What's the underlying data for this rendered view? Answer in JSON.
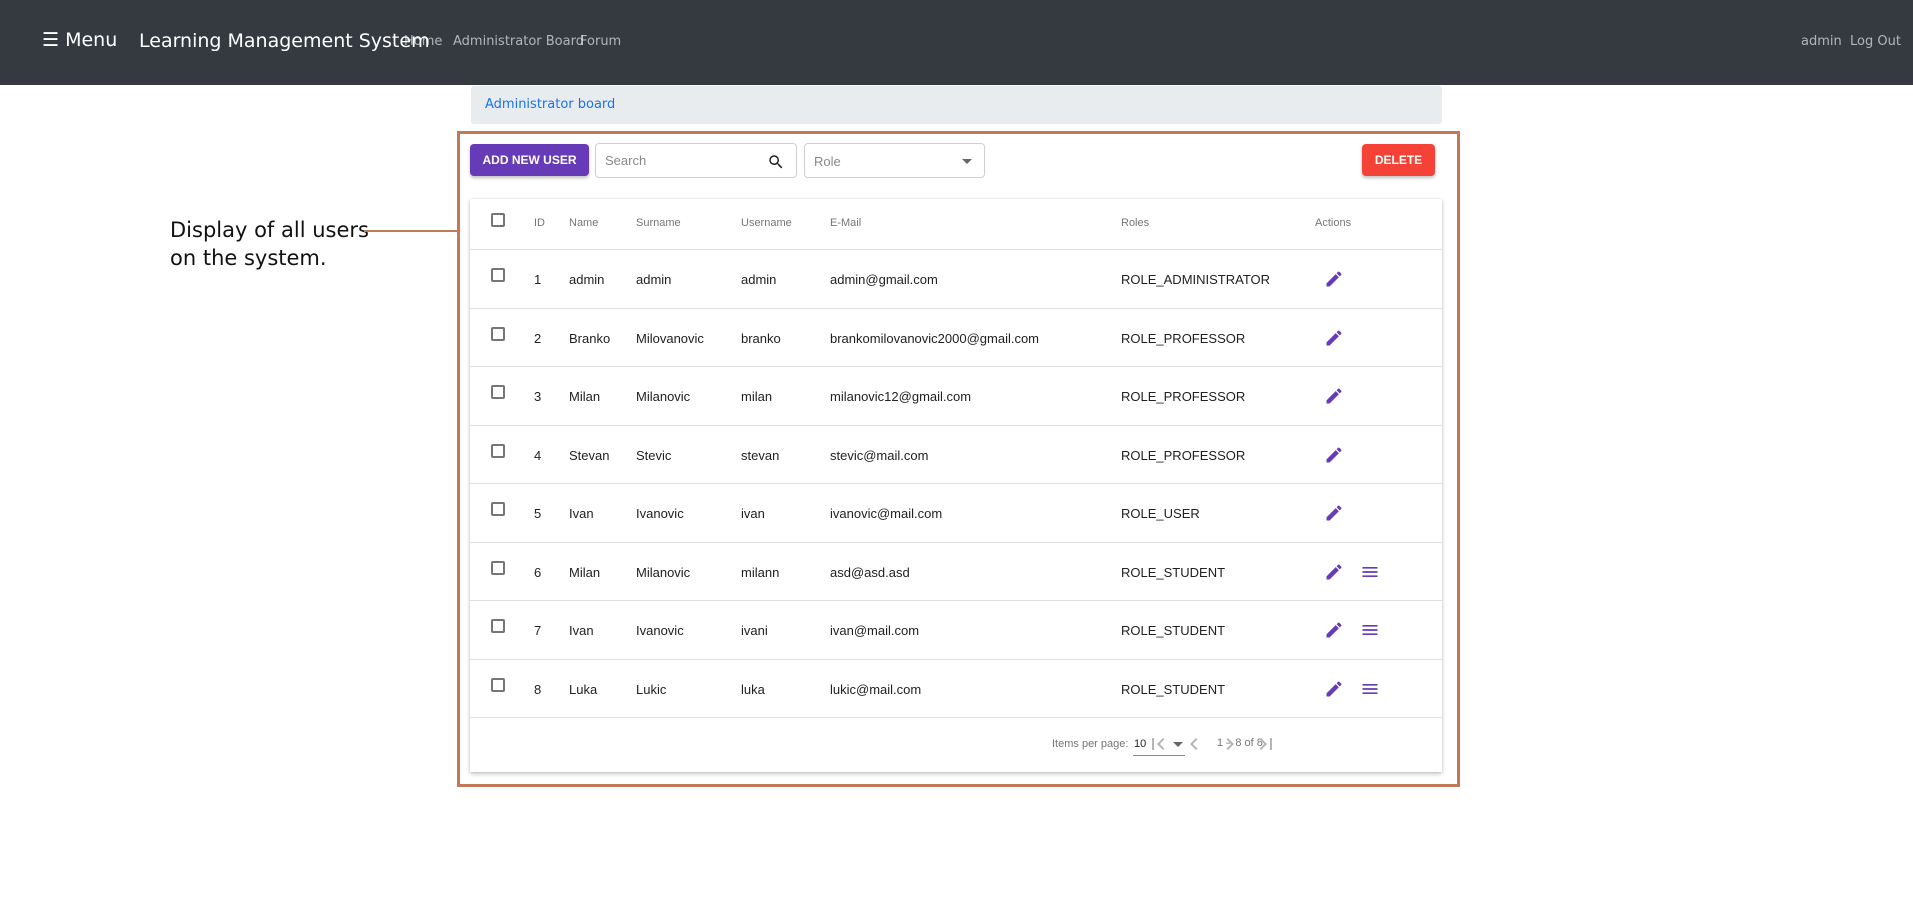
{
  "navbar": {
    "menu_label": "☰ Menu",
    "brand": "Learning Management System",
    "links": [
      "Home",
      "Administrator Board",
      "Forum"
    ],
    "user": "admin",
    "logout": "Log Out"
  },
  "breadcrumb": {
    "label": "Administrator board"
  },
  "annotation": {
    "line1": "Display of all users",
    "line2": "on the system."
  },
  "toolbar": {
    "add_label": "ADD NEW USER",
    "search_placeholder": "Search",
    "role_placeholder": "Role",
    "delete_label": "DELETE"
  },
  "table": {
    "columns": [
      "ID",
      "Name",
      "Surname",
      "Username",
      "E-Mail",
      "Roles",
      "Actions"
    ],
    "rows": [
      {
        "id": "1",
        "name": "admin",
        "surname": "admin",
        "username": "admin",
        "email": "admin@gmail.com",
        "role": "ROLE_ADMINISTRATOR",
        "has_menu": false
      },
      {
        "id": "2",
        "name": "Branko",
        "surname": "Milovanovic",
        "username": "branko",
        "email": "brankomilovanovic2000@gmail.com",
        "role": "ROLE_PROFESSOR",
        "has_menu": false
      },
      {
        "id": "3",
        "name": "Milan",
        "surname": "Milanovic",
        "username": "milan",
        "email": "milanovic12@gmail.com",
        "role": "ROLE_PROFESSOR",
        "has_menu": false
      },
      {
        "id": "4",
        "name": "Stevan",
        "surname": "Stevic",
        "username": "stevan",
        "email": "stevic@mail.com",
        "role": "ROLE_PROFESSOR",
        "has_menu": false
      },
      {
        "id": "5",
        "name": "Ivan",
        "surname": "Ivanovic",
        "username": "ivan",
        "email": "ivanovic@mail.com",
        "role": "ROLE_USER",
        "has_menu": false
      },
      {
        "id": "6",
        "name": "Milan",
        "surname": "Milanovic",
        "username": "milann",
        "email": "asd@asd.asd",
        "role": "ROLE_STUDENT",
        "has_menu": true
      },
      {
        "id": "7",
        "name": "Ivan",
        "surname": "Ivanovic",
        "username": "ivani",
        "email": "ivan@mail.com",
        "role": "ROLE_STUDENT",
        "has_menu": true
      },
      {
        "id": "8",
        "name": "Luka",
        "surname": "Lukic",
        "username": "luka",
        "email": "lukic@mail.com",
        "role": "ROLE_STUDENT",
        "has_menu": true
      }
    ]
  },
  "paginator": {
    "items_label": "Items per page:",
    "page_size": "10",
    "range": "1 – 8 of 8"
  },
  "colors": {
    "navbar": "#343a40",
    "primary": "#673ab7",
    "warn": "#f44336",
    "annotation": "#c07a58"
  },
  "icons": {
    "search": "search-icon",
    "edit": "pencil-icon",
    "menu": "list-icon",
    "first": "first-page-icon",
    "prev": "chevron-left-icon",
    "next": "chevron-right-icon",
    "last": "last-page-icon"
  }
}
